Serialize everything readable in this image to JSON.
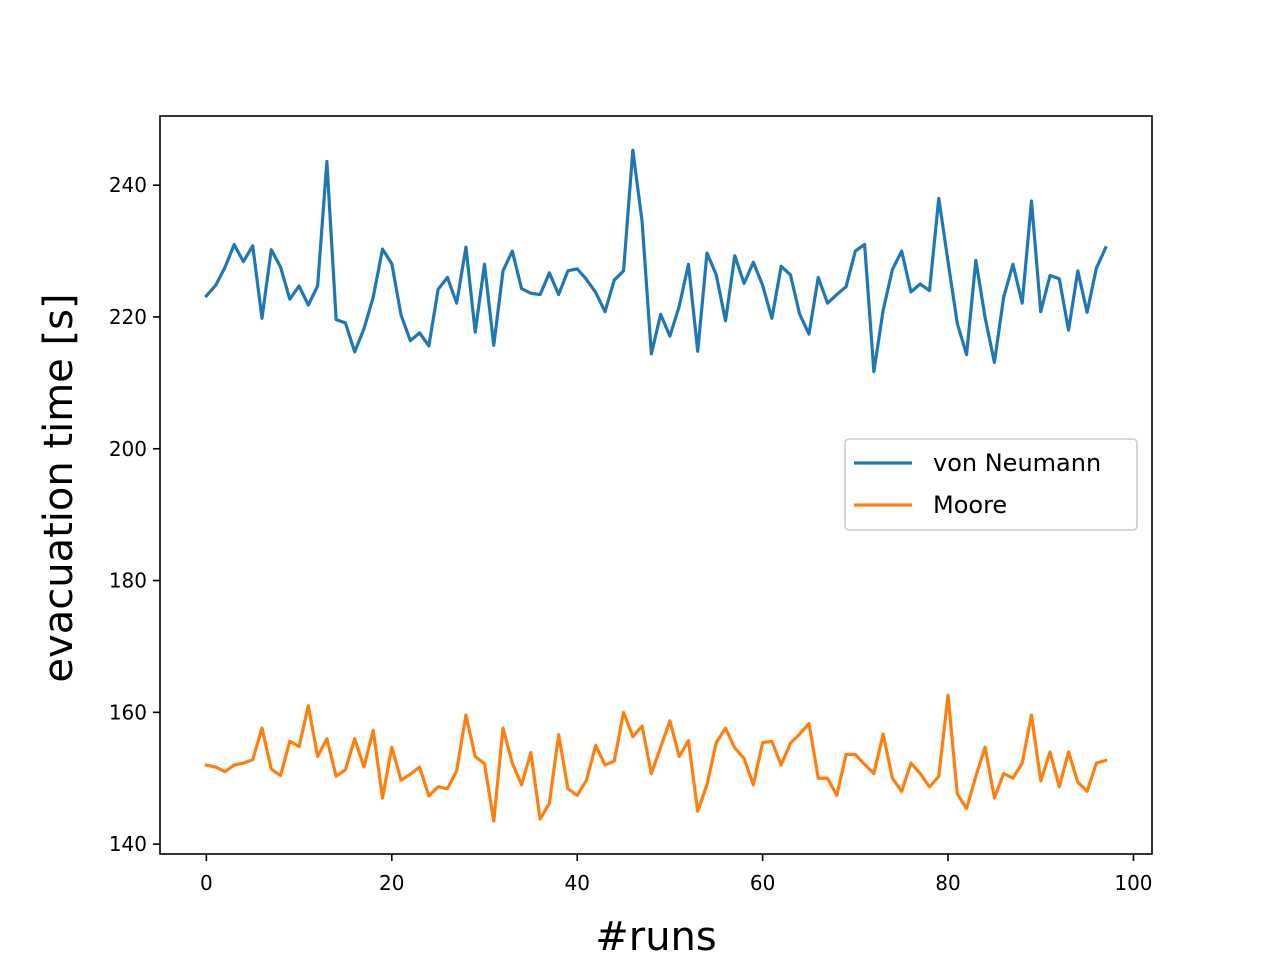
{
  "chart_data": {
    "type": "line",
    "title": "",
    "xlabel": "#runs",
    "ylabel": "evacuation time [s]",
    "xlim": [
      -5,
      102
    ],
    "ylim": [
      138.5,
      250.5
    ],
    "xticks": [
      0,
      20,
      40,
      60,
      80,
      100
    ],
    "yticks": [
      140,
      160,
      180,
      200,
      220,
      240
    ],
    "grid": false,
    "legend_position": "center-right",
    "x": [
      0,
      1,
      2,
      3,
      4,
      5,
      6,
      7,
      8,
      9,
      10,
      11,
      12,
      13,
      14,
      15,
      16,
      17,
      18,
      19,
      20,
      21,
      22,
      23,
      24,
      25,
      26,
      27,
      28,
      29,
      30,
      31,
      32,
      33,
      34,
      35,
      36,
      37,
      38,
      39,
      40,
      41,
      42,
      43,
      44,
      45,
      46,
      47,
      48,
      49,
      50,
      51,
      52,
      53,
      54,
      55,
      56,
      57,
      58,
      59,
      60,
      61,
      62,
      63,
      64,
      65,
      66,
      67,
      68,
      69,
      70,
      71,
      72,
      73,
      74,
      75,
      76,
      77,
      78,
      79,
      80,
      81,
      82,
      83,
      84,
      85,
      86,
      87,
      88,
      89,
      90,
      91,
      92,
      93,
      94,
      95,
      96,
      97
    ],
    "series": [
      {
        "name": "von Neumann",
        "color": "#1f77b4",
        "values": [
          223.2,
          224.8,
          227.5,
          231.0,
          228.4,
          230.8,
          219.8,
          230.2,
          227.6,
          222.7,
          224.7,
          221.8,
          224.7,
          243.6,
          219.6,
          219.1,
          214.7,
          218.2,
          223.0,
          230.3,
          228.1,
          220.3,
          216.4,
          217.6,
          215.6,
          224.2,
          226.0,
          222.1,
          230.6,
          217.7,
          228.0,
          215.7,
          227.0,
          230.0,
          224.3,
          223.6,
          223.4,
          226.7,
          223.4,
          227.0,
          227.3,
          225.7,
          223.7,
          220.8,
          225.6,
          227.0,
          245.3,
          234.5,
          214.4,
          220.4,
          217.1,
          221.6,
          228.0,
          214.8,
          229.7,
          226.4,
          219.4,
          229.3,
          225.1,
          228.3,
          224.8,
          219.8,
          227.7,
          226.4,
          220.4,
          217.4,
          226.0,
          222.1,
          223.4,
          224.6,
          230.0,
          231.0,
          211.7,
          221.0,
          227.2,
          230.0,
          223.8,
          225.0,
          224.0,
          238.0,
          228.4,
          219.0,
          214.3,
          228.6,
          219.9,
          213.1,
          223.0,
          228.0,
          222.1,
          237.6,
          220.8,
          226.3,
          225.8,
          218.0,
          227.0,
          220.7,
          227.4,
          230.5
        ]
      },
      {
        "name": "Moore",
        "color": "#ff7f0e",
        "values": [
          152.0,
          151.7,
          151.0,
          152.0,
          152.3,
          152.8,
          157.6,
          151.4,
          150.4,
          155.6,
          154.8,
          161.0,
          153.3,
          156.0,
          150.3,
          151.3,
          156.0,
          151.7,
          157.3,
          147.0,
          154.7,
          149.7,
          150.6,
          151.7,
          147.3,
          148.7,
          148.4,
          151.1,
          159.6,
          153.3,
          152.2,
          143.5,
          157.6,
          152.3,
          149.0,
          153.9,
          143.8,
          146.2,
          156.6,
          148.4,
          147.4,
          149.7,
          155.0,
          152.0,
          152.6,
          160.0,
          156.3,
          157.9,
          150.7,
          154.7,
          158.7,
          153.3,
          155.7,
          145.0,
          149.0,
          155.4,
          157.6,
          154.6,
          153.0,
          149.0,
          155.4,
          155.6,
          152.0,
          155.3,
          156.7,
          158.3,
          150.0,
          150.0,
          147.4,
          153.6,
          153.6,
          152.1,
          150.7,
          156.7,
          150.0,
          148.0,
          152.3,
          150.7,
          148.7,
          150.3,
          162.6,
          147.6,
          145.4,
          150.3,
          154.7,
          147.0,
          150.7,
          150.0,
          152.3,
          159.6,
          149.6,
          154.0,
          148.7,
          154.0,
          149.4,
          148.0,
          152.3,
          152.7
        ]
      }
    ]
  }
}
